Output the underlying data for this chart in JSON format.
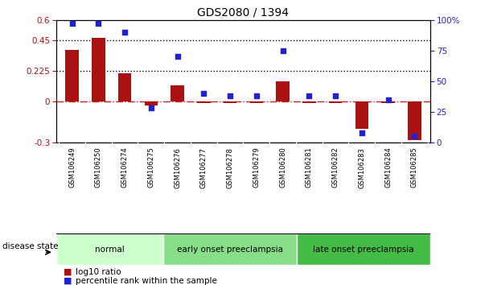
{
  "title": "GDS2080 / 1394",
  "samples": [
    "GSM106249",
    "GSM106250",
    "GSM106274",
    "GSM106275",
    "GSM106276",
    "GSM106277",
    "GSM106278",
    "GSM106279",
    "GSM106280",
    "GSM106281",
    "GSM106282",
    "GSM106283",
    "GSM106284",
    "GSM106285"
  ],
  "log10_ratio": [
    0.38,
    0.47,
    0.21,
    -0.03,
    0.12,
    -0.01,
    -0.01,
    -0.01,
    0.15,
    -0.01,
    -0.01,
    -0.2,
    -0.01,
    -0.28
  ],
  "percentile_rank": [
    97,
    97,
    90,
    28,
    70,
    40,
    38,
    38,
    75,
    38,
    38,
    8,
    35,
    5
  ],
  "ylim_left": [
    -0.3,
    0.6
  ],
  "ylim_right": [
    0,
    100
  ],
  "yticks_left": [
    -0.3,
    0,
    0.225,
    0.45,
    0.6
  ],
  "yticks_right": [
    0,
    25,
    50,
    75,
    100
  ],
  "hlines": [
    0.225,
    0.45
  ],
  "bar_color": "#AA1111",
  "dot_color": "#2222CC",
  "zero_line_color": "#CC2222",
  "groups": [
    {
      "label": "normal",
      "start": 0,
      "end": 4,
      "color": "#ccffcc"
    },
    {
      "label": "early onset preeclampsia",
      "start": 4,
      "end": 9,
      "color": "#88dd88"
    },
    {
      "label": "late onset preeclampsia",
      "start": 9,
      "end": 14,
      "color": "#44bb44"
    }
  ],
  "legend_items": [
    {
      "label": "log10 ratio",
      "color": "#AA1111"
    },
    {
      "label": "percentile rank within the sample",
      "color": "#2222CC"
    }
  ],
  "disease_state_label": "disease state",
  "background_color": "#ffffff",
  "tick_bg_color": "#cccccc"
}
